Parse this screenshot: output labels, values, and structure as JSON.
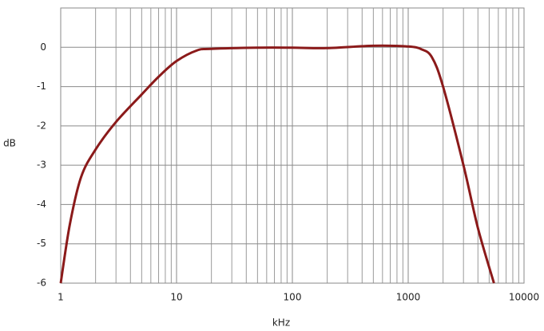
{
  "chart_data": {
    "type": "line",
    "xscale": "log",
    "grid": true,
    "xlabel": "kHz",
    "ylabel": "dB",
    "xlim": [
      1,
      10000
    ],
    "xticks": [
      1,
      10,
      100,
      1000,
      10000
    ],
    "ylim": [
      -6,
      1
    ],
    "yticks": [
      -6,
      -5,
      -4,
      -3,
      -2,
      -1,
      0
    ],
    "color": "#8b1a1a",
    "x": [
      1,
      1.2,
      1.5,
      2,
      3,
      5,
      7,
      10,
      15,
      20,
      50,
      100,
      200,
      500,
      1000,
      1300,
      1600,
      2000,
      3000,
      4000,
      5500
    ],
    "values": [
      -6,
      -4.5,
      -3.3,
      -2.6,
      -1.9,
      -1.2,
      -0.75,
      -0.35,
      -0.08,
      -0.04,
      -0.01,
      -0.01,
      -0.02,
      0.04,
      0.02,
      -0.05,
      -0.25,
      -1.0,
      -3.0,
      -4.6,
      -6
    ]
  }
}
